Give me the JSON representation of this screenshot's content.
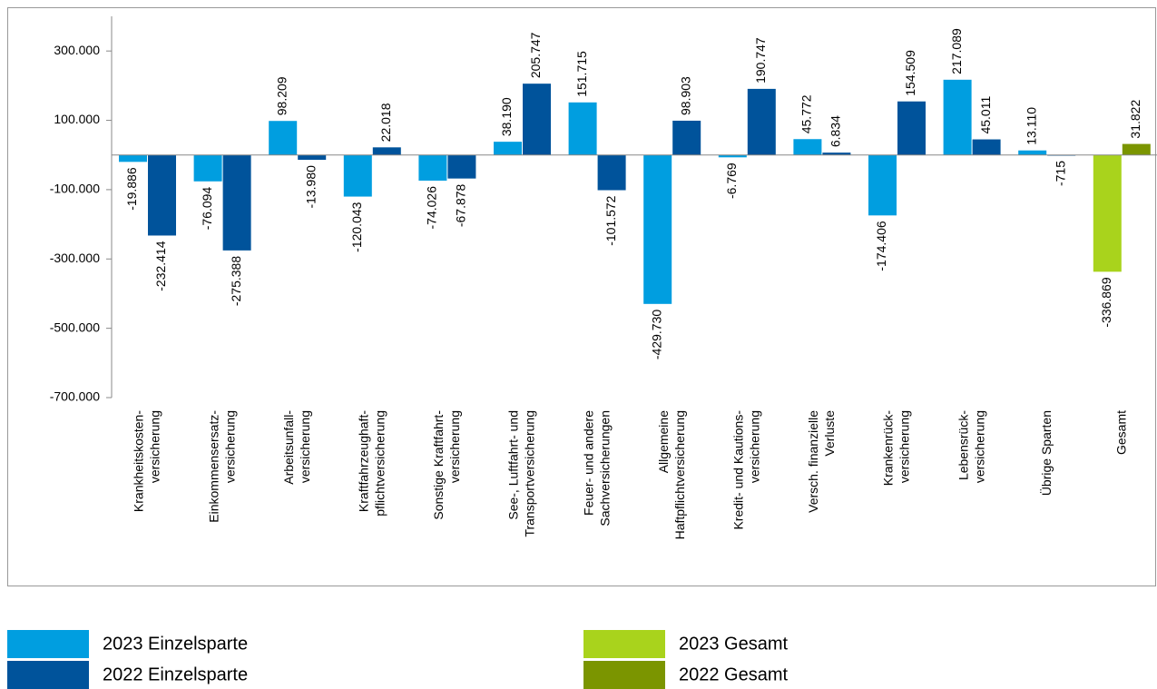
{
  "chart_data": {
    "type": "bar",
    "categories": [
      [
        "Krankheitskosten-",
        "versicherung"
      ],
      [
        "Einkommensersatz-",
        "versicherung"
      ],
      [
        "Arbeitsunfall-",
        "versicherung"
      ],
      [
        "Kraftfahrzeughaft-",
        "pflichtversicherung"
      ],
      [
        "Sonstige Kraftfahrt-",
        "versicherung"
      ],
      [
        "See-, Luftfahrt- und",
        "Transportversicherung"
      ],
      [
        "Feuer- und andere",
        "Sachversicherungen"
      ],
      [
        "Allgemeine",
        "Haftpflichtversicherung"
      ],
      [
        "Kredit- und Kautions-",
        "versicherung"
      ],
      [
        "Versch. finanzielle",
        "Verluste"
      ],
      [
        "Krankenrück-",
        "versicherung"
      ],
      [
        "Lebensrück-",
        "versicherung"
      ],
      [
        "Übrige Sparten"
      ],
      [
        "Gesamt"
      ]
    ],
    "series": [
      {
        "name": "2023 Einzelsparte",
        "color": "#009ee0",
        "values": [
          -19886,
          -76094,
          98209,
          -120043,
          -74026,
          38190,
          151715,
          -429730,
          -6769,
          45772,
          -174406,
          217089,
          13110,
          null
        ],
        "value_labels": [
          "-19.886",
          "-76.094",
          "98.209",
          "-120.043",
          "-74.026",
          "38.190",
          "151.715",
          "-429.730",
          "-6.769",
          "45.772",
          "-174.406",
          "217.089",
          "13.110",
          null
        ]
      },
      {
        "name": "2022 Einzelsparte",
        "color": "#00539b",
        "values": [
          -232414,
          -275388,
          -13980,
          22018,
          -67878,
          205747,
          -101572,
          98903,
          190747,
          6834,
          154509,
          45011,
          -715,
          null
        ],
        "value_labels": [
          "-232.414",
          "-275.388",
          "-13.980",
          "22.018",
          "-67.878",
          "205.747",
          "-101.572",
          "98.903",
          "190.747",
          "6.834",
          "154.509",
          "45.011",
          "-715",
          null
        ]
      },
      {
        "name": "2023 Gesamt",
        "color": "#a9d31c",
        "values": [
          null,
          null,
          null,
          null,
          null,
          null,
          null,
          null,
          null,
          null,
          null,
          null,
          null,
          -336869
        ],
        "value_labels": [
          null,
          null,
          null,
          null,
          null,
          null,
          null,
          null,
          null,
          null,
          null,
          null,
          null,
          "-336.869"
        ]
      },
      {
        "name": "2022 Gesamt",
        "color": "#7b9500",
        "values": [
          null,
          null,
          null,
          null,
          null,
          null,
          null,
          null,
          null,
          null,
          null,
          null,
          null,
          31822
        ],
        "value_labels": [
          null,
          null,
          null,
          null,
          null,
          null,
          null,
          null,
          null,
          null,
          null,
          null,
          null,
          "31.822"
        ]
      }
    ],
    "ylim": [
      -700000,
      400000
    ],
    "yticks": [
      {
        "value": 300000,
        "label": "300.000"
      },
      {
        "value": 100000,
        "label": "100.000"
      },
      {
        "value": -100000,
        "label": "-100.000"
      },
      {
        "value": -300000,
        "label": "-300.000"
      },
      {
        "value": -500000,
        "label": "-500.000"
      },
      {
        "value": -700000,
        "label": "-700.000"
      }
    ],
    "grid": false,
    "legend": "bottom"
  }
}
